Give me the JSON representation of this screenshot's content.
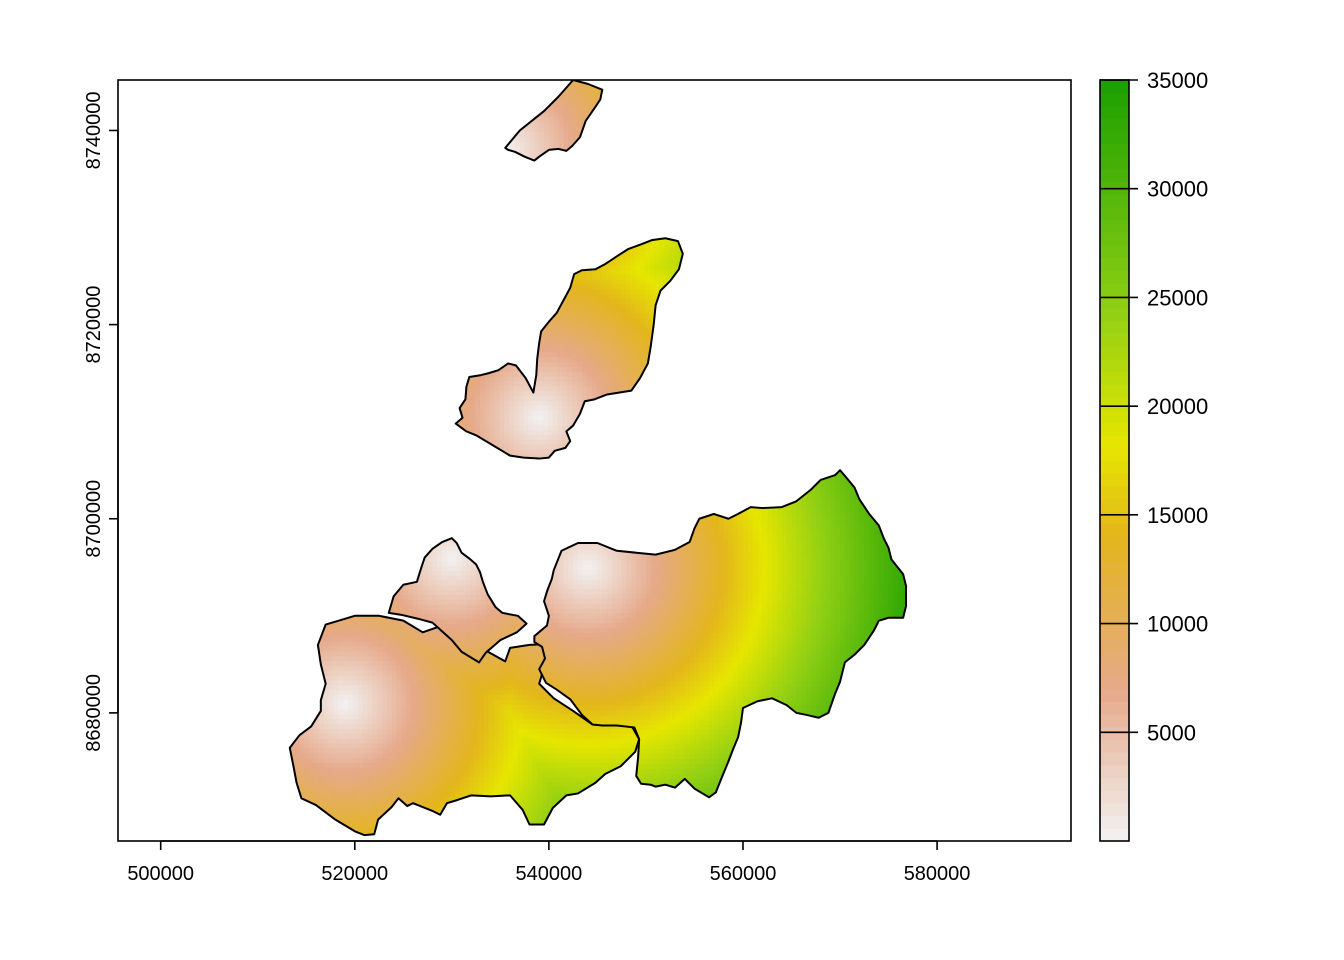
{
  "chart_data": {
    "type": "heatmap",
    "title": "",
    "xlabel": "",
    "ylabel": "",
    "xlim": [
      495600,
      593800
    ],
    "ylim": [
      8666800,
      8745200
    ],
    "x_ticks": [
      500000,
      520000,
      540000,
      560000,
      580000
    ],
    "x_tick_labels": [
      "500000",
      "520000",
      "540000",
      "560000",
      "580000"
    ],
    "y_ticks": [
      8680000,
      8700000,
      8720000,
      8740000
    ],
    "y_tick_labels": [
      "8680000",
      "8700000",
      "8720000",
      "8740000"
    ],
    "grid": false,
    "legend_position": "right",
    "colorbar": {
      "min": 0,
      "max": 35000,
      "ticks": [
        5000,
        10000,
        15000,
        20000,
        25000,
        30000,
        35000
      ],
      "tick_labels": [
        "5000",
        "10000",
        "15000",
        "20000",
        "25000",
        "30000",
        "35000"
      ],
      "colors": [
        "#f2f2f2",
        "#e6a98a",
        "#e3b61c",
        "#e6e600",
        "#8fcf14",
        "#1a9f00"
      ],
      "stops": [
        0,
        0.2,
        0.4,
        0.52,
        0.7,
        1
      ]
    },
    "field": {
      "description_value": "distance-based surface increasing away from local minima",
      "sources": [
        {
          "x": 519000,
          "y": 8681000
        },
        {
          "x": 530000,
          "y": 8696000
        },
        {
          "x": 544000,
          "y": 8695000
        },
        {
          "x": 539000,
          "y": 8710500
        },
        {
          "x": 535500,
          "y": 8738000
        }
      ]
    },
    "regions": [
      {
        "name": "north-island",
        "points": [
          [
            535500,
            8738200
          ],
          [
            537000,
            8740000
          ],
          [
            539500,
            8742000
          ],
          [
            541000,
            8743500
          ],
          [
            542500,
            8745200
          ],
          [
            544000,
            8744800
          ],
          [
            545500,
            8744200
          ],
          [
            545300,
            8743200
          ],
          [
            544700,
            8742300
          ],
          [
            543800,
            8741000
          ],
          [
            543200,
            8739300
          ],
          [
            542400,
            8738400
          ],
          [
            541800,
            8737900
          ],
          [
            541000,
            8738100
          ],
          [
            540000,
            8738000
          ],
          [
            539000,
            8737300
          ],
          [
            538500,
            8736900
          ],
          [
            537500,
            8737300
          ],
          [
            536500,
            8737800
          ],
          [
            535800,
            8738000
          ]
        ]
      },
      {
        "name": "middle-island",
        "points": [
          [
            538400,
            8713000
          ],
          [
            537600,
            8714500
          ],
          [
            536600,
            8715800
          ],
          [
            535800,
            8716000
          ],
          [
            534800,
            8715300
          ],
          [
            533800,
            8715000
          ],
          [
            533000,
            8714800
          ],
          [
            531800,
            8714600
          ],
          [
            531500,
            8713600
          ],
          [
            531400,
            8712300
          ],
          [
            530800,
            8711400
          ],
          [
            531100,
            8710400
          ],
          [
            530400,
            8709800
          ],
          [
            531500,
            8709000
          ],
          [
            532500,
            8708600
          ],
          [
            534500,
            8707400
          ],
          [
            536000,
            8706500
          ],
          [
            537400,
            8706300
          ],
          [
            539000,
            8706200
          ],
          [
            540000,
            8706300
          ],
          [
            540600,
            8707000
          ],
          [
            541700,
            8707300
          ],
          [
            542200,
            8708000
          ],
          [
            541800,
            8709000
          ],
          [
            542500,
            8709600
          ],
          [
            543200,
            8710800
          ],
          [
            543700,
            8712100
          ],
          [
            544700,
            8712300
          ],
          [
            546000,
            8712800
          ],
          [
            548500,
            8713200
          ],
          [
            549400,
            8714500
          ],
          [
            550200,
            8716000
          ],
          [
            550500,
            8717800
          ],
          [
            550800,
            8720000
          ],
          [
            551000,
            8722000
          ],
          [
            551500,
            8723500
          ],
          [
            552500,
            8724500
          ],
          [
            553400,
            8725700
          ],
          [
            553800,
            8727300
          ],
          [
            553300,
            8728600
          ],
          [
            552000,
            8728900
          ],
          [
            550600,
            8728700
          ],
          [
            549300,
            8728200
          ],
          [
            548200,
            8727800
          ],
          [
            547100,
            8727100
          ],
          [
            545900,
            8726300
          ],
          [
            544800,
            8725700
          ],
          [
            543400,
            8725600
          ],
          [
            542600,
            8725200
          ],
          [
            542200,
            8723800
          ],
          [
            541500,
            8722500
          ],
          [
            540800,
            8721200
          ],
          [
            540000,
            8720300
          ],
          [
            539200,
            8719300
          ],
          [
            539000,
            8718100
          ],
          [
            538800,
            8716500
          ],
          [
            538700,
            8714800
          ]
        ]
      },
      {
        "name": "south-west",
        "points": [
          [
            517000,
            8689100
          ],
          [
            520000,
            8690000
          ],
          [
            522500,
            8690000
          ],
          [
            525000,
            8689500
          ],
          [
            527000,
            8688300
          ],
          [
            529000,
            8689000
          ],
          [
            531000,
            8688000
          ],
          [
            533000,
            8686700
          ],
          [
            535500,
            8685300
          ],
          [
            536000,
            8686700
          ],
          [
            538000,
            8687000
          ],
          [
            540000,
            8687100
          ],
          [
            540200,
            8685800
          ],
          [
            539600,
            8685000
          ],
          [
            539000,
            8683000
          ],
          [
            540500,
            8681500
          ],
          [
            542500,
            8680200
          ],
          [
            544500,
            8678800
          ],
          [
            546500,
            8678700
          ],
          [
            548500,
            8678700
          ],
          [
            549300,
            8677300
          ],
          [
            548900,
            8676000
          ],
          [
            547400,
            8674500
          ],
          [
            545800,
            8673700
          ],
          [
            544800,
            8672800
          ],
          [
            543000,
            8671700
          ],
          [
            541800,
            8671500
          ],
          [
            540400,
            8670200
          ],
          [
            539500,
            8668500
          ],
          [
            538000,
            8668500
          ],
          [
            537300,
            8670000
          ],
          [
            536000,
            8671500
          ],
          [
            534000,
            8671400
          ],
          [
            532000,
            8671500
          ],
          [
            530500,
            8671000
          ],
          [
            529500,
            8670700
          ],
          [
            528800,
            8669500
          ],
          [
            528000,
            8669900
          ],
          [
            526000,
            8670700
          ],
          [
            525400,
            8670400
          ],
          [
            524500,
            8671200
          ],
          [
            523800,
            8670300
          ],
          [
            522400,
            8669000
          ],
          [
            522000,
            8667500
          ],
          [
            521000,
            8667400
          ],
          [
            520000,
            8667800
          ],
          [
            518000,
            8669000
          ],
          [
            516000,
            8670500
          ],
          [
            514500,
            8671200
          ],
          [
            514000,
            8672800
          ],
          [
            513700,
            8674400
          ],
          [
            513300,
            8676400
          ],
          [
            514300,
            8677700
          ],
          [
            515500,
            8678600
          ],
          [
            516500,
            8680200
          ],
          [
            516500,
            8681300
          ],
          [
            517000,
            8683000
          ],
          [
            516500,
            8685000
          ],
          [
            516200,
            8687000
          ]
        ]
      },
      {
        "name": "center-top",
        "points": [
          [
            523500,
            8690300
          ],
          [
            524000,
            8692000
          ],
          [
            525000,
            8693200
          ],
          [
            526400,
            8693500
          ],
          [
            526800,
            8694800
          ],
          [
            527200,
            8696000
          ],
          [
            528000,
            8696900
          ],
          [
            529000,
            8697600
          ],
          [
            530000,
            8698000
          ],
          [
            530500,
            8697500
          ],
          [
            531000,
            8696500
          ],
          [
            531800,
            8695900
          ],
          [
            532500,
            8695300
          ],
          [
            532900,
            8694500
          ],
          [
            533200,
            8693500
          ],
          [
            533700,
            8692200
          ],
          [
            534500,
            8690900
          ],
          [
            535200,
            8690300
          ],
          [
            536800,
            8690000
          ],
          [
            537700,
            8689200
          ],
          [
            536700,
            8688300
          ],
          [
            535000,
            8687500
          ],
          [
            533500,
            8686200
          ],
          [
            532800,
            8685200
          ],
          [
            531000,
            8686300
          ],
          [
            530000,
            8687500
          ],
          [
            529000,
            8688400
          ],
          [
            528000,
            8689300
          ],
          [
            526500,
            8689700
          ],
          [
            524800,
            8690100
          ]
        ]
      },
      {
        "name": "east",
        "points": [
          [
            538500,
            8687900
          ],
          [
            539800,
            8689000
          ],
          [
            540000,
            8690000
          ],
          [
            539500,
            8691500
          ],
          [
            539800,
            8692500
          ],
          [
            540300,
            8693800
          ],
          [
            540500,
            8694700
          ],
          [
            541300,
            8696700
          ],
          [
            543000,
            8697500
          ],
          [
            545000,
            8697500
          ],
          [
            547000,
            8696700
          ],
          [
            549000,
            8696500
          ],
          [
            551000,
            8696300
          ],
          [
            553000,
            8696800
          ],
          [
            554500,
            8697600
          ],
          [
            555000,
            8699000
          ],
          [
            555500,
            8700000
          ],
          [
            557000,
            8700500
          ],
          [
            558500,
            8700000
          ],
          [
            559500,
            8700500
          ],
          [
            560800,
            8701200
          ],
          [
            562000,
            8701100
          ],
          [
            564000,
            8701200
          ],
          [
            565500,
            8701800
          ],
          [
            567000,
            8703000
          ],
          [
            568000,
            8704000
          ],
          [
            569500,
            8704500
          ],
          [
            570000,
            8705000
          ],
          [
            570600,
            8704300
          ],
          [
            571500,
            8703200
          ],
          [
            572000,
            8702000
          ],
          [
            573000,
            8700500
          ],
          [
            574000,
            8699300
          ],
          [
            574500,
            8698000
          ],
          [
            575000,
            8697000
          ],
          [
            575300,
            8695800
          ],
          [
            576500,
            8694300
          ],
          [
            576800,
            8693100
          ],
          [
            576800,
            8691000
          ],
          [
            576500,
            8689800
          ],
          [
            575000,
            8689800
          ],
          [
            574000,
            8689500
          ],
          [
            573500,
            8688500
          ],
          [
            572500,
            8687000
          ],
          [
            571500,
            8686000
          ],
          [
            570500,
            8685200
          ],
          [
            570000,
            8683200
          ],
          [
            569500,
            8682000
          ],
          [
            568800,
            8680000
          ],
          [
            567800,
            8679500
          ],
          [
            566500,
            8679800
          ],
          [
            565500,
            8680000
          ],
          [
            564500,
            8680800
          ],
          [
            563000,
            8681500
          ],
          [
            561500,
            8681200
          ],
          [
            560000,
            8680500
          ],
          [
            559800,
            8679000
          ],
          [
            559500,
            8677500
          ],
          [
            559000,
            8676300
          ],
          [
            558500,
            8675000
          ],
          [
            557800,
            8673300
          ],
          [
            557200,
            8671800
          ],
          [
            556500,
            8671300
          ],
          [
            555000,
            8672200
          ],
          [
            554000,
            8673200
          ],
          [
            553000,
            8672300
          ],
          [
            552000,
            8672600
          ],
          [
            551000,
            8672400
          ],
          [
            550500,
            8672600
          ],
          [
            549500,
            8672700
          ],
          [
            549000,
            8673500
          ],
          [
            549200,
            8675500
          ],
          [
            549300,
            8677300
          ],
          [
            548800,
            8678500
          ],
          [
            547000,
            8678700
          ],
          [
            545500,
            8678700
          ],
          [
            544500,
            8678800
          ],
          [
            543400,
            8679800
          ],
          [
            542200,
            8681400
          ],
          [
            540800,
            8682400
          ],
          [
            539700,
            8683100
          ],
          [
            539000,
            8684500
          ],
          [
            539600,
            8685600
          ],
          [
            539300,
            8686800
          ],
          [
            538500,
            8687300
          ]
        ]
      }
    ]
  }
}
